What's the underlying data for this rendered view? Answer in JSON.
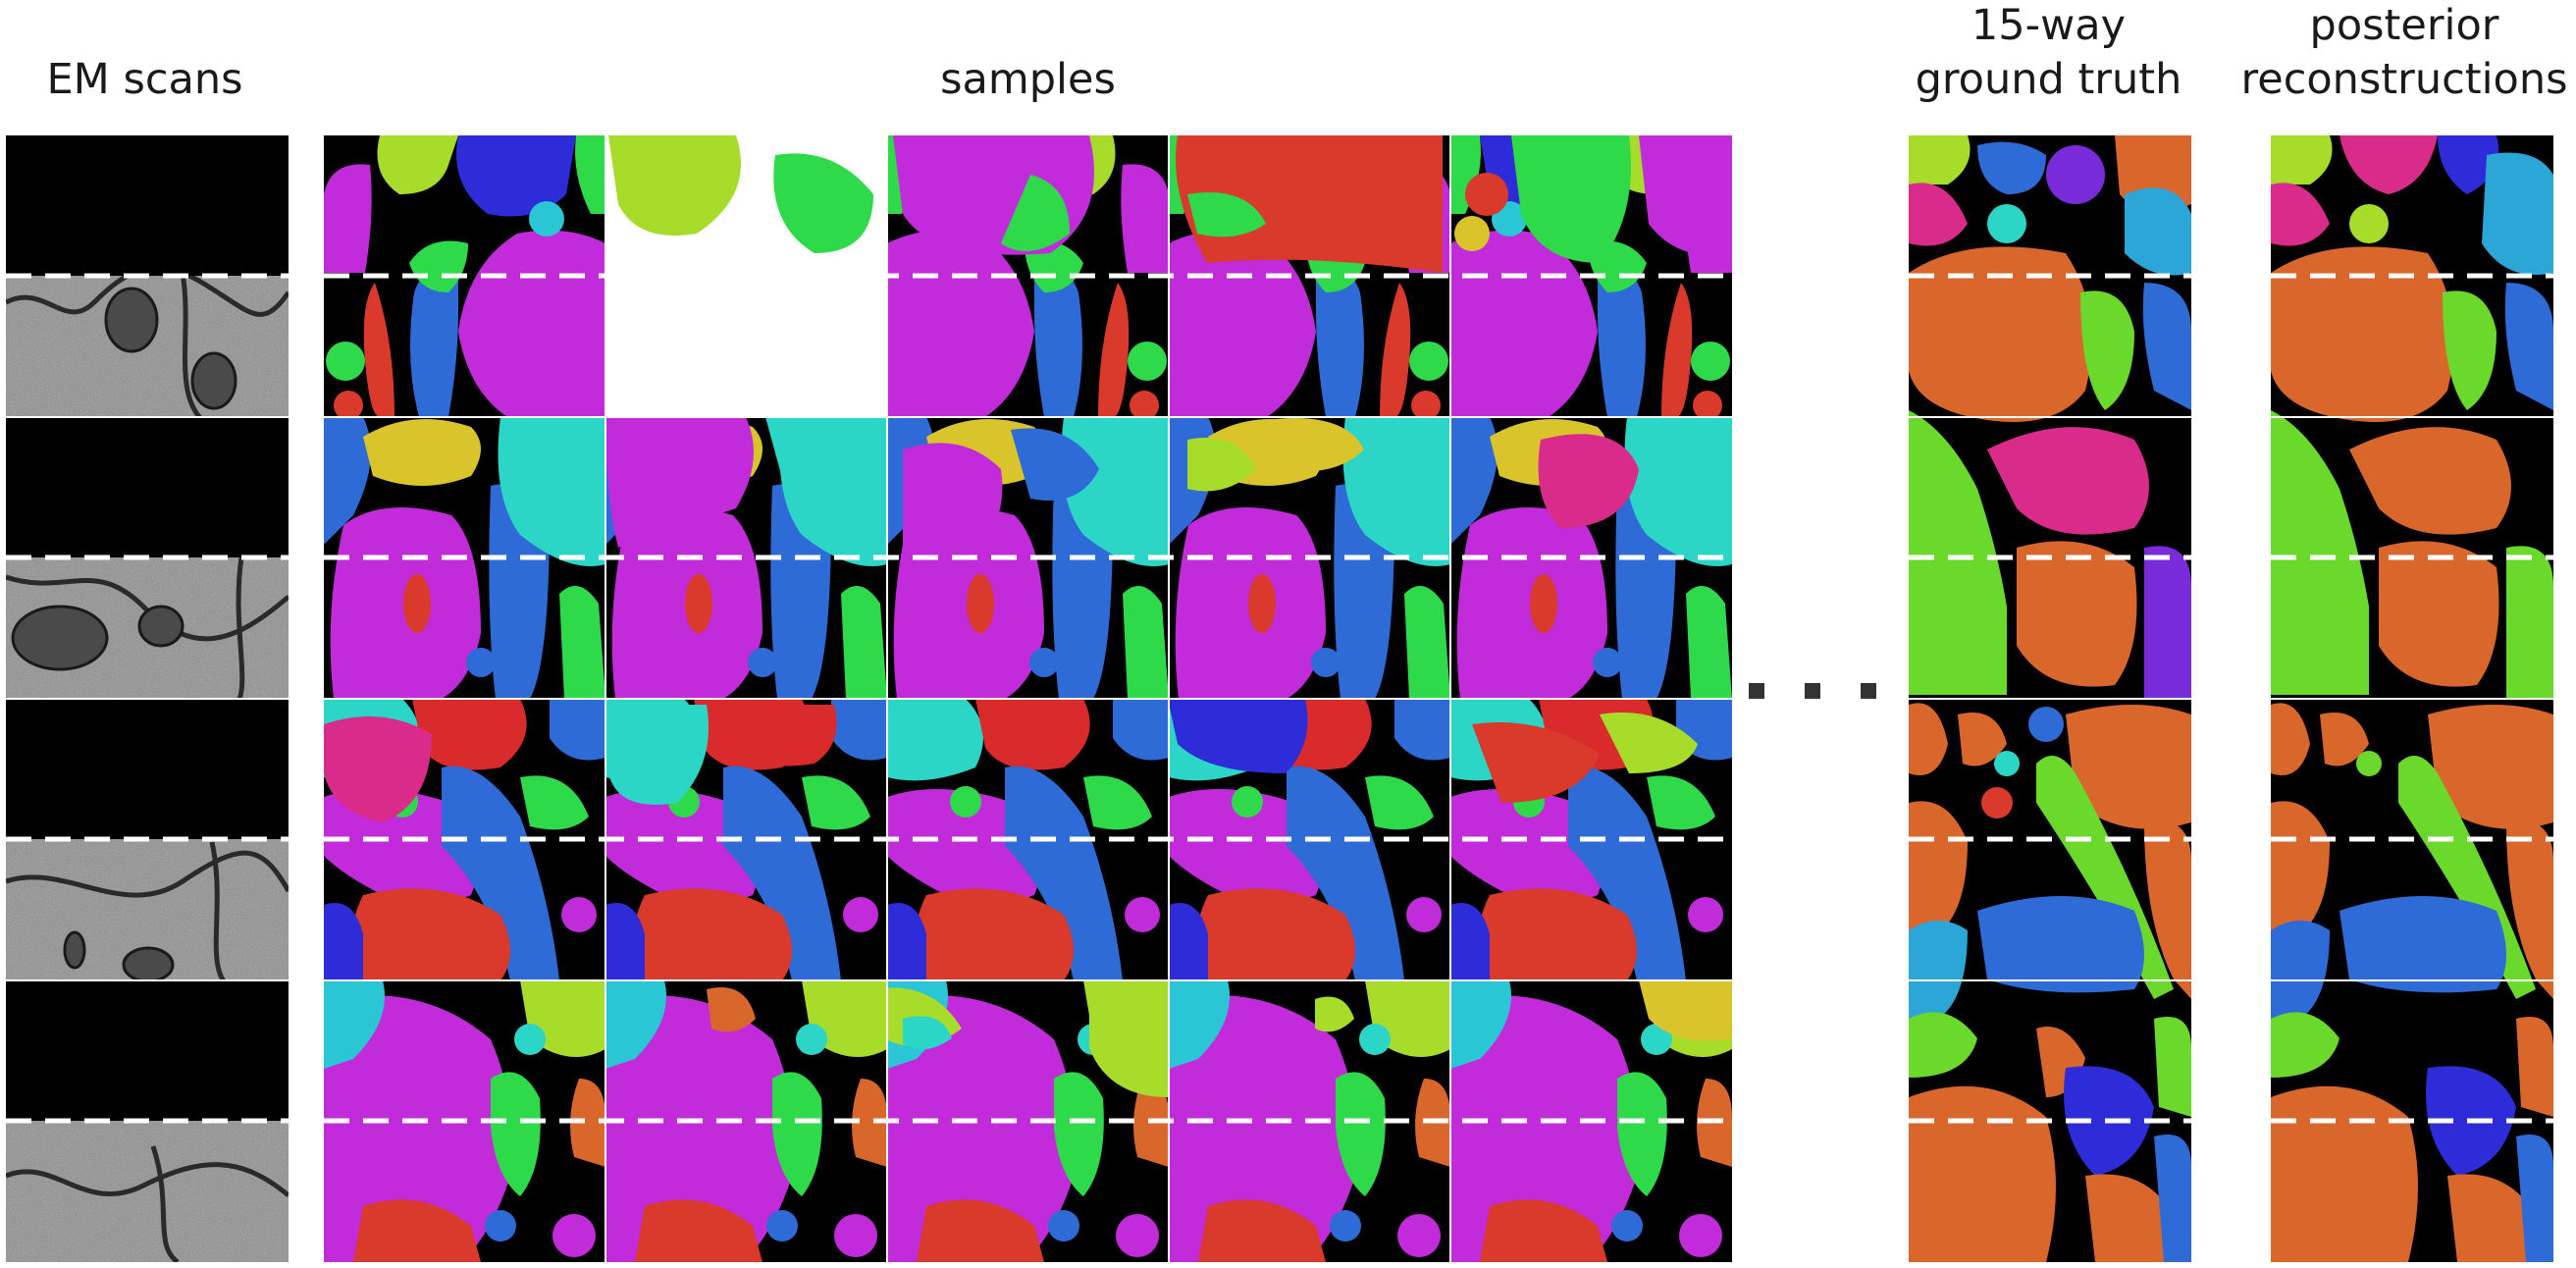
{
  "headers": {
    "em_scans": "EM scans",
    "samples": "samples",
    "ground_truth_line1": "15-way",
    "ground_truth_line2": "ground truth",
    "posterior_line1": "posterior",
    "posterior_line2": "reconstructions"
  },
  "ellipsis": "...",
  "palette": {
    "magenta": "#c22bd9",
    "blue": "#2e6bd6",
    "red": "#d93a2b",
    "green": "#2ed94a",
    "lime": "#a7dc2b",
    "yellow": "#d9c42b",
    "orange": "#d9662b",
    "cyan": "#2bd6c6",
    "skyblue": "#2ba6d6",
    "indigo": "#3a2bd9",
    "pink": "#d92b8a",
    "violet": "#7a2bd9",
    "membrane": "#000000",
    "em_gray": "#8e8e8e",
    "mask": "#000000",
    "dash": "#ffffff"
  },
  "panels": {
    "em_rows": 4,
    "sample_columns": 5,
    "sample_rows": 4,
    "masked_fraction": 0.5
  }
}
